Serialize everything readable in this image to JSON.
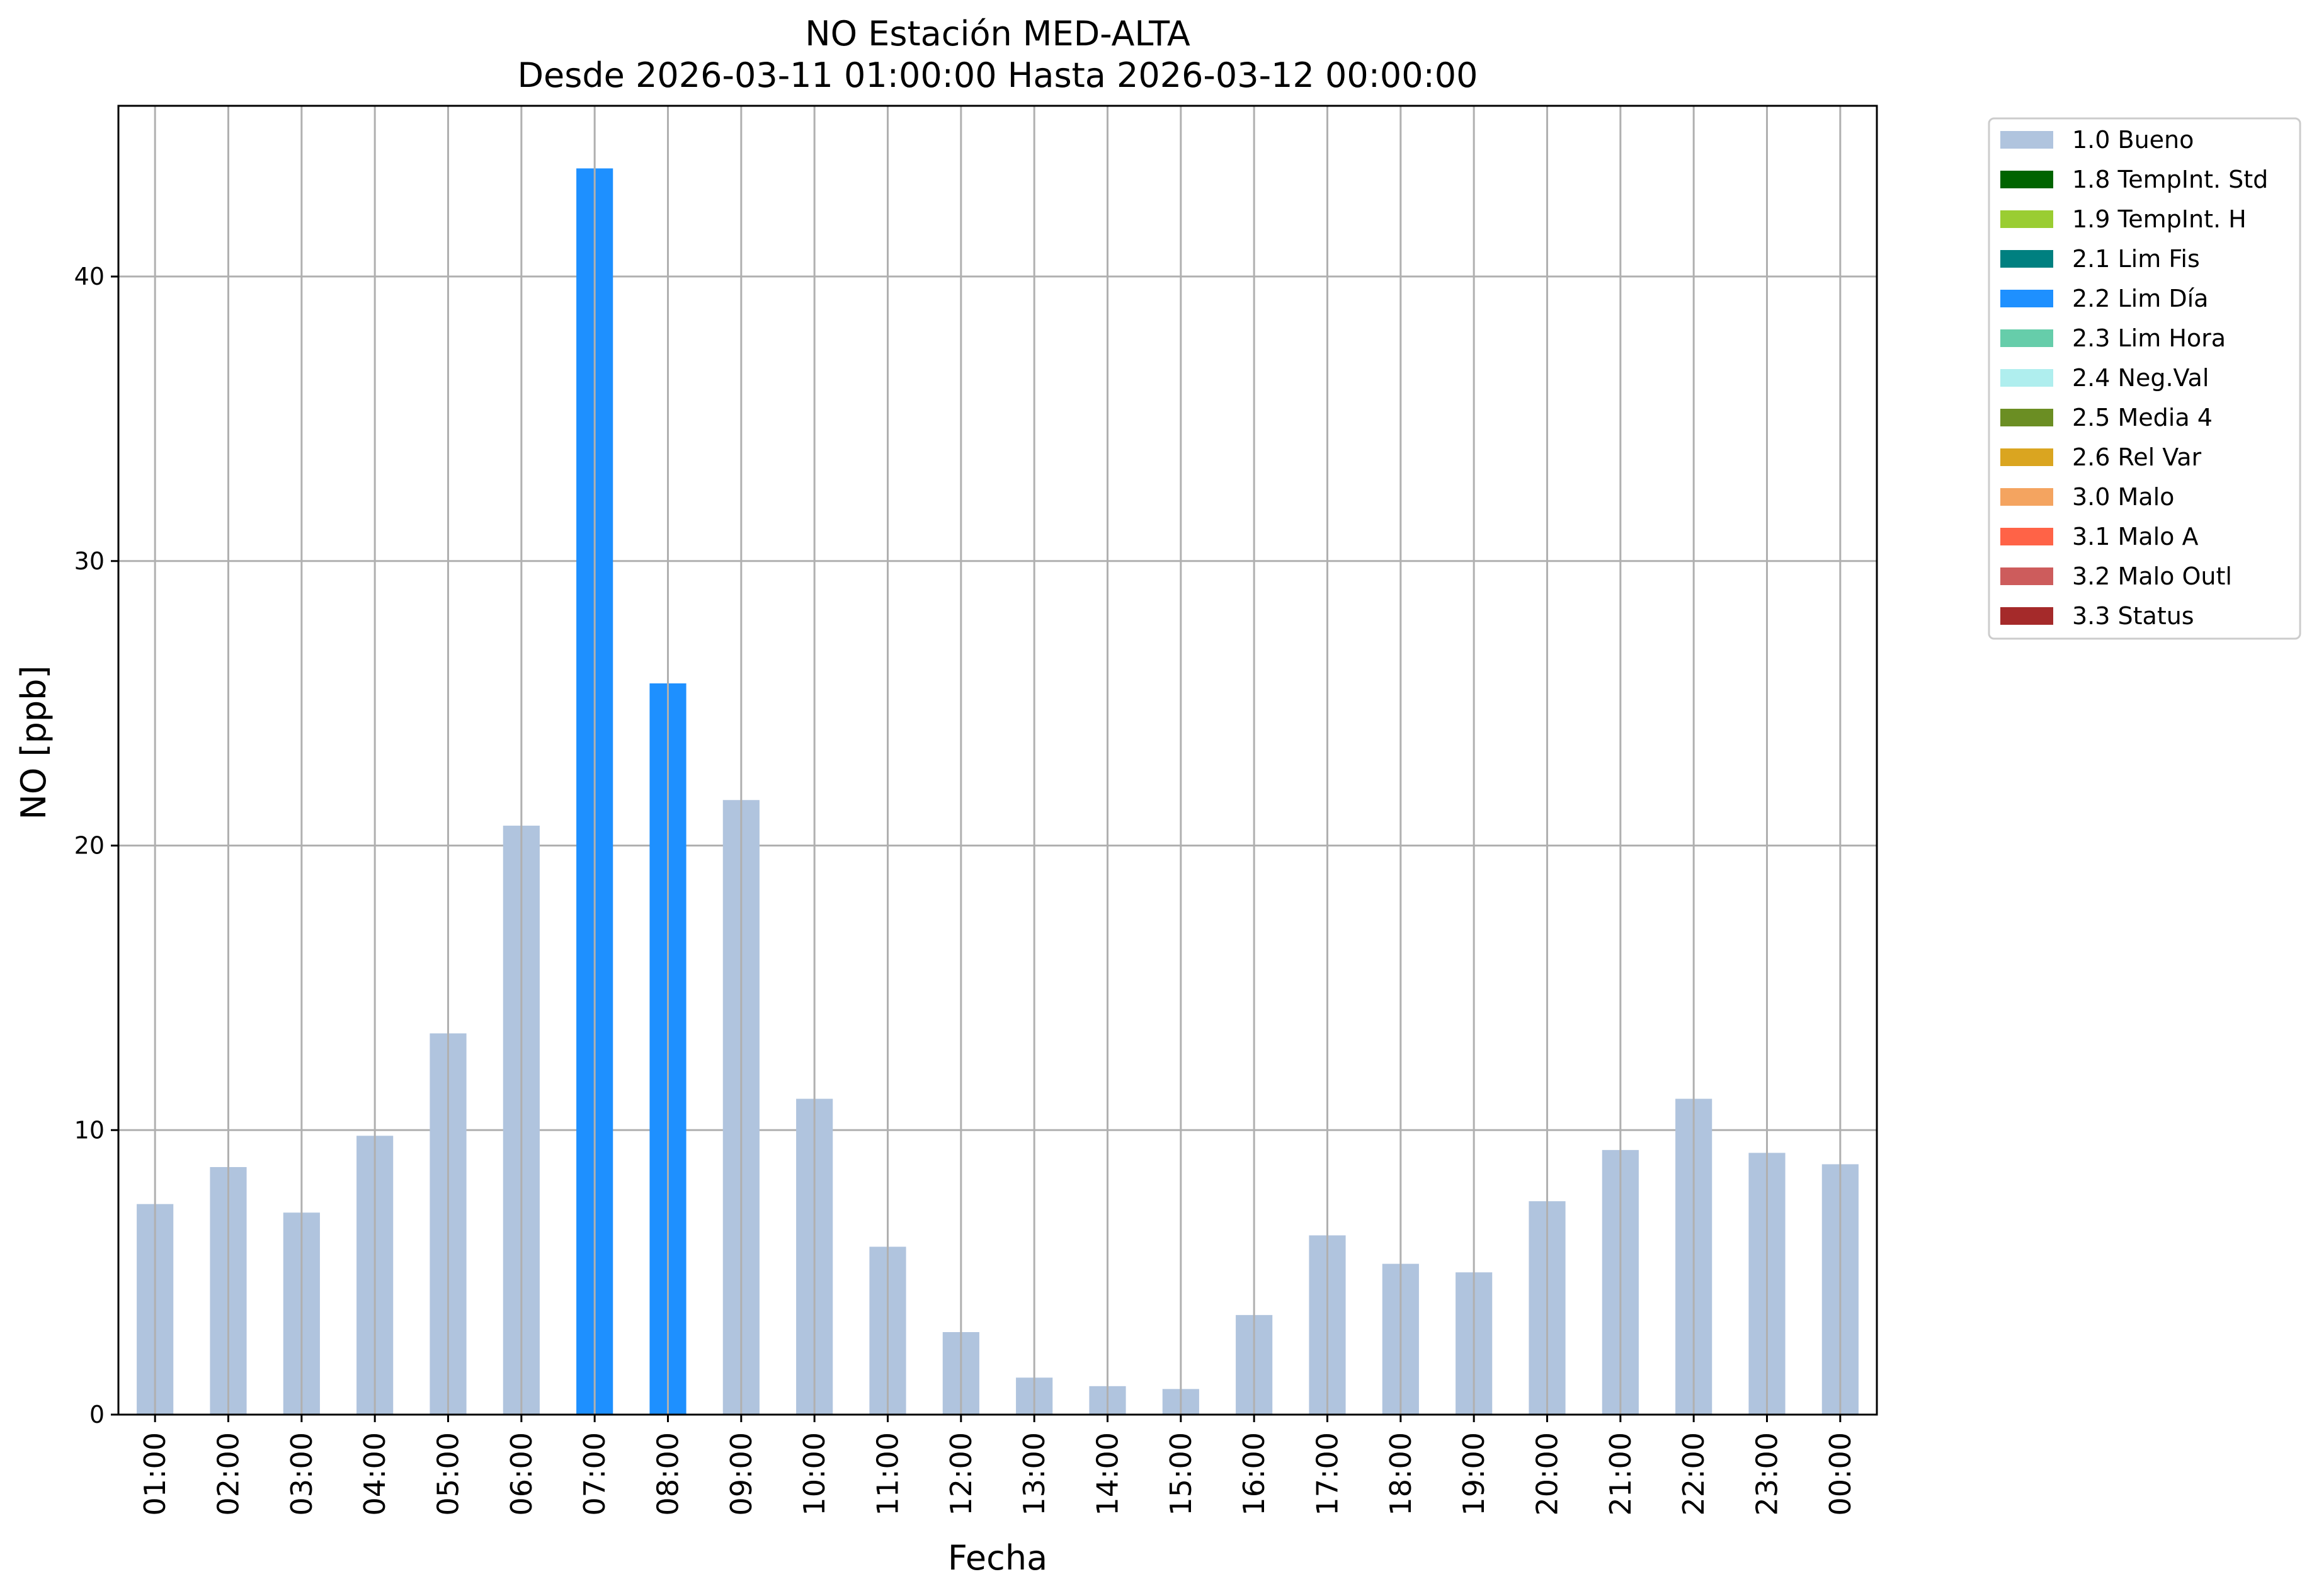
{
  "chart_data": {
    "type": "bar",
    "title_line1": "NO Estación MED-ALTA",
    "title_line2": "Desde 2026-03-11 01:00:00 Hasta 2026-03-12 00:00:00",
    "xlabel": "Fecha",
    "ylabel": "NO [ppb]",
    "ylim": [
      0,
      46
    ],
    "yticks": [
      0,
      10,
      20,
      30,
      40
    ],
    "grid": true,
    "legend_position": "outside-top-right",
    "categories": [
      "01:00",
      "02:00",
      "03:00",
      "04:00",
      "05:00",
      "06:00",
      "07:00",
      "08:00",
      "09:00",
      "10:00",
      "11:00",
      "12:00",
      "13:00",
      "14:00",
      "15:00",
      "16:00",
      "17:00",
      "18:00",
      "19:00",
      "20:00",
      "21:00",
      "22:00",
      "23:00",
      "00:00"
    ],
    "values": [
      7.4,
      8.7,
      7.1,
      9.8,
      13.4,
      20.7,
      43.8,
      25.7,
      21.6,
      11.1,
      5.9,
      2.9,
      1.3,
      1.0,
      0.9,
      3.5,
      6.3,
      5.3,
      5.0,
      7.5,
      9.3,
      11.1,
      9.2,
      8.8
    ],
    "flags": [
      "1.0 Bueno",
      "1.0 Bueno",
      "1.0 Bueno",
      "1.0 Bueno",
      "1.0 Bueno",
      "1.0 Bueno",
      "2.2 Lim Día",
      "2.2 Lim Día",
      "1.0 Bueno",
      "1.0 Bueno",
      "1.0 Bueno",
      "1.0 Bueno",
      "1.0 Bueno",
      "1.0 Bueno",
      "1.0 Bueno",
      "1.0 Bueno",
      "1.0 Bueno",
      "1.0 Bueno",
      "1.0 Bueno",
      "1.0 Bueno",
      "1.0 Bueno",
      "1.0 Bueno",
      "1.0 Bueno",
      "1.0 Bueno"
    ],
    "legend": [
      {
        "label": "1.0 Bueno",
        "color": "#b0c4de"
      },
      {
        "label": "1.8 TempInt. Std",
        "color": "#006400"
      },
      {
        "label": "1.9 TempInt. H",
        "color": "#9acd32"
      },
      {
        "label": "2.1 Lim Fis",
        "color": "#008080"
      },
      {
        "label": "2.2 Lim Día",
        "color": "#1e90ff"
      },
      {
        "label": "2.3 Lim Hora",
        "color": "#66cdaa"
      },
      {
        "label": "2.4 Neg.Val",
        "color": "#afeeee"
      },
      {
        "label": "2.5 Media 4",
        "color": "#6b8e23"
      },
      {
        "label": "2.6 Rel Var",
        "color": "#daa520"
      },
      {
        "label": "3.0 Malo",
        "color": "#f4a460"
      },
      {
        "label": "3.1 Malo A",
        "color": "#ff6347"
      },
      {
        "label": "3.2 Malo Outl",
        "color": "#cd5c5c"
      },
      {
        "label": "3.3 Status",
        "color": "#a52a2a"
      }
    ]
  }
}
